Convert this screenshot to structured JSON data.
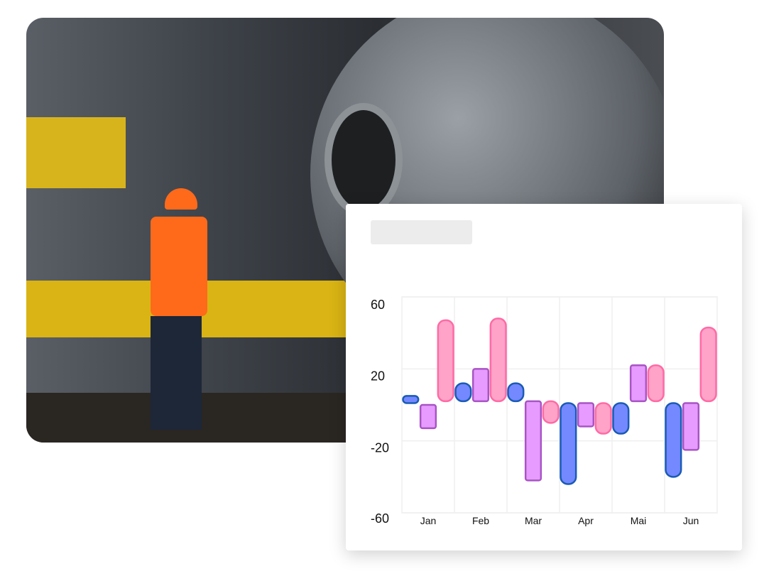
{
  "chart_data": {
    "type": "bar",
    "subtype": "floating-range",
    "title": "",
    "categories": [
      "Jan",
      "Feb",
      "Mar",
      "Apr",
      "Mai",
      "Jun"
    ],
    "ylim": [
      -60,
      60
    ],
    "yticks": [
      60,
      20,
      -20,
      -60
    ],
    "grid": true,
    "series": [
      {
        "color": "#7488ff",
        "stroke": "#1a5bb5",
        "values": [
          [
            1,
            5
          ],
          [
            2,
            12
          ],
          [
            2,
            12
          ],
          [
            -44,
            1
          ],
          [
            -16,
            1
          ],
          [
            -40,
            1
          ]
        ]
      },
      {
        "color": "#e79bff",
        "stroke": "#a855c4",
        "values": [
          [
            -13,
            0
          ],
          [
            2,
            20
          ],
          [
            -42,
            2
          ],
          [
            -12,
            1
          ],
          [
            2,
            22
          ],
          [
            -25,
            1
          ]
        ]
      },
      {
        "color": "#ffa3c9",
        "stroke": "#ff6aa5",
        "values": [
          [
            2,
            47
          ],
          [
            2,
            48
          ],
          [
            -10,
            2
          ],
          [
            -16,
            1
          ],
          [
            2,
            22
          ],
          [
            2,
            43
          ]
        ]
      }
    ]
  }
}
